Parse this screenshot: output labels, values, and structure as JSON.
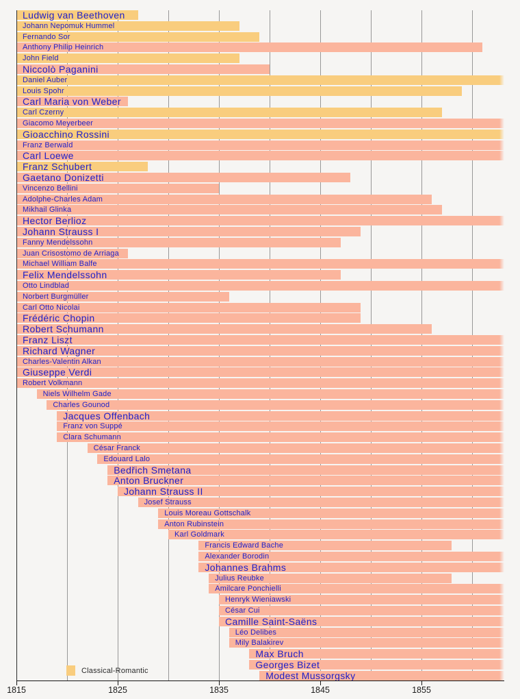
{
  "chart_data": {
    "type": "timeline",
    "title": "",
    "x_axis": {
      "min_year": 1815,
      "max_year": 1863,
      "tick_years": [
        1815,
        1825,
        1835,
        1845,
        1855
      ],
      "gridline_years": [
        1820,
        1825,
        1830,
        1835,
        1840,
        1845,
        1850,
        1855,
        1860
      ],
      "grid": "on"
    },
    "legend": [
      {
        "label": "Classical-Romantic",
        "group": "classical-romantic"
      }
    ],
    "group_colors": {
      "classical-romantic": "#f9cd7e",
      "romantic": "#fbb59d"
    },
    "composers": [
      {
        "name": "Ludwig van Beethoven",
        "size": "lg",
        "group": "classical-romantic",
        "start": 1815,
        "end": 1827,
        "clip_start": true,
        "clip_end": false
      },
      {
        "name": "Johann Nepomuk Hummel",
        "size": "sm",
        "group": "classical-romantic",
        "start": 1815,
        "end": 1837,
        "clip_start": true,
        "clip_end": false
      },
      {
        "name": "Fernando Sor",
        "size": "sm",
        "group": "classical-romantic",
        "start": 1815,
        "end": 1839,
        "clip_start": true,
        "clip_end": false
      },
      {
        "name": "Anthony Philip Heinrich",
        "size": "sm",
        "group": "romantic",
        "start": 1815,
        "end": 1861,
        "clip_start": true,
        "clip_end": false
      },
      {
        "name": "John Field",
        "size": "sm",
        "group": "classical-romantic",
        "start": 1815,
        "end": 1837,
        "clip_start": true,
        "clip_end": false
      },
      {
        "name": "Niccolò Paganini",
        "size": "lg",
        "group": "romantic",
        "start": 1815,
        "end": 1840,
        "clip_start": true,
        "clip_end": false
      },
      {
        "name": "Daniel Auber",
        "size": "sm",
        "group": "classical-romantic",
        "start": 1815,
        "end": 1863,
        "clip_start": true,
        "clip_end": true
      },
      {
        "name": "Louis Spohr",
        "size": "sm",
        "group": "classical-romantic",
        "start": 1815,
        "end": 1859,
        "clip_start": true,
        "clip_end": false
      },
      {
        "name": "Carl Maria von Weber",
        "size": "lg",
        "group": "romantic",
        "start": 1815,
        "end": 1826,
        "clip_start": true,
        "clip_end": false
      },
      {
        "name": "Carl Czerny",
        "size": "sm",
        "group": "classical-romantic",
        "start": 1815,
        "end": 1857,
        "clip_start": true,
        "clip_end": false
      },
      {
        "name": "Giacomo Meyerbeer",
        "size": "sm",
        "group": "romantic",
        "start": 1815,
        "end": 1863,
        "clip_start": true,
        "clip_end": true
      },
      {
        "name": "Gioacchino Rossini",
        "size": "lg",
        "group": "classical-romantic",
        "start": 1815,
        "end": 1863,
        "clip_start": true,
        "clip_end": true
      },
      {
        "name": "Franz Berwald",
        "size": "sm",
        "group": "romantic",
        "start": 1815,
        "end": 1863,
        "clip_start": true,
        "clip_end": true
      },
      {
        "name": "Carl Loewe",
        "size": "lg",
        "group": "romantic",
        "start": 1815,
        "end": 1863,
        "clip_start": true,
        "clip_end": true
      },
      {
        "name": "Franz Schubert",
        "size": "lg",
        "group": "classical-romantic",
        "start": 1815,
        "end": 1828,
        "clip_start": true,
        "clip_end": false
      },
      {
        "name": "Gaetano Donizetti",
        "size": "lg",
        "group": "romantic",
        "start": 1815,
        "end": 1848,
        "clip_start": true,
        "clip_end": false
      },
      {
        "name": "Vincenzo Bellini",
        "size": "sm",
        "group": "romantic",
        "start": 1815,
        "end": 1835,
        "clip_start": true,
        "clip_end": false
      },
      {
        "name": "Adolphe-Charles Adam",
        "size": "sm",
        "group": "romantic",
        "start": 1815,
        "end": 1856,
        "clip_start": true,
        "clip_end": false
      },
      {
        "name": "Mikhail Glinka",
        "size": "sm",
        "group": "romantic",
        "start": 1815,
        "end": 1857,
        "clip_start": true,
        "clip_end": false
      },
      {
        "name": "Hector Berlioz",
        "size": "lg",
        "group": "romantic",
        "start": 1815,
        "end": 1863,
        "clip_start": true,
        "clip_end": true
      },
      {
        "name": "Johann Strauss I",
        "size": "lg",
        "group": "romantic",
        "start": 1815,
        "end": 1849,
        "clip_start": true,
        "clip_end": false
      },
      {
        "name": "Fanny Mendelssohn",
        "size": "sm",
        "group": "romantic",
        "start": 1815,
        "end": 1847,
        "clip_start": true,
        "clip_end": false
      },
      {
        "name": "Juan Crisostomo de Arriaga",
        "size": "sm",
        "group": "romantic",
        "start": 1815,
        "end": 1826,
        "clip_start": true,
        "clip_end": false
      },
      {
        "name": "Michael William Balfe",
        "size": "sm",
        "group": "romantic",
        "start": 1815,
        "end": 1863,
        "clip_start": true,
        "clip_end": true
      },
      {
        "name": "Felix Mendelssohn",
        "size": "lg",
        "group": "romantic",
        "start": 1815,
        "end": 1847,
        "clip_start": true,
        "clip_end": false
      },
      {
        "name": "Otto Lindblad",
        "size": "sm",
        "group": "romantic",
        "start": 1815,
        "end": 1863,
        "clip_start": true,
        "clip_end": true
      },
      {
        "name": "Norbert Burgmüller",
        "size": "sm",
        "group": "romantic",
        "start": 1815,
        "end": 1836,
        "clip_start": true,
        "clip_end": false
      },
      {
        "name": "Carl Otto Nicolai",
        "size": "sm",
        "group": "romantic",
        "start": 1815,
        "end": 1849,
        "clip_start": true,
        "clip_end": false
      },
      {
        "name": "Frédéric Chopin",
        "size": "lg",
        "group": "romantic",
        "start": 1815,
        "end": 1849,
        "clip_start": true,
        "clip_end": false
      },
      {
        "name": "Robert Schumann",
        "size": "lg",
        "group": "romantic",
        "start": 1815,
        "end": 1856,
        "clip_start": true,
        "clip_end": false
      },
      {
        "name": "Franz Liszt",
        "size": "lg",
        "group": "romantic",
        "start": 1815,
        "end": 1863,
        "clip_start": true,
        "clip_end": true
      },
      {
        "name": "Richard Wagner",
        "size": "lg",
        "group": "romantic",
        "start": 1815,
        "end": 1863,
        "clip_start": true,
        "clip_end": true
      },
      {
        "name": "Charles-Valentin Alkan",
        "size": "sm",
        "group": "romantic",
        "start": 1815,
        "end": 1863,
        "clip_start": true,
        "clip_end": true
      },
      {
        "name": "Giuseppe Verdi",
        "size": "lg",
        "group": "romantic",
        "start": 1815,
        "end": 1863,
        "clip_start": true,
        "clip_end": true
      },
      {
        "name": "Robert Volkmann",
        "size": "sm",
        "group": "romantic",
        "start": 1815,
        "end": 1863,
        "clip_start": true,
        "clip_end": true
      },
      {
        "name": "Niels Wilhelm Gade",
        "size": "sm",
        "group": "romantic",
        "start": 1817,
        "end": 1863,
        "clip_start": false,
        "clip_end": true
      },
      {
        "name": "Charles Gounod",
        "size": "sm",
        "group": "romantic",
        "start": 1818,
        "end": 1863,
        "clip_start": false,
        "clip_end": true
      },
      {
        "name": "Jacques Offenbach",
        "size": "lg",
        "group": "romantic",
        "start": 1819,
        "end": 1863,
        "clip_start": false,
        "clip_end": true
      },
      {
        "name": "Franz von Suppé",
        "size": "sm",
        "group": "romantic",
        "start": 1819,
        "end": 1863,
        "clip_start": false,
        "clip_end": true
      },
      {
        "name": "Clara Schumann",
        "size": "sm",
        "group": "romantic",
        "start": 1819,
        "end": 1863,
        "clip_start": false,
        "clip_end": true
      },
      {
        "name": "César Franck",
        "size": "sm",
        "group": "romantic",
        "start": 1822,
        "end": 1863,
        "clip_start": false,
        "clip_end": true
      },
      {
        "name": "Edouard Lalo",
        "size": "sm",
        "group": "romantic",
        "start": 1823,
        "end": 1863,
        "clip_start": false,
        "clip_end": true
      },
      {
        "name": "Bedřich Smetana",
        "size": "lg",
        "group": "romantic",
        "start": 1824,
        "end": 1863,
        "clip_start": false,
        "clip_end": true
      },
      {
        "name": "Anton Bruckner",
        "size": "lg",
        "group": "romantic",
        "start": 1824,
        "end": 1863,
        "clip_start": false,
        "clip_end": true
      },
      {
        "name": "Johann Strauss II",
        "size": "lg",
        "group": "romantic",
        "start": 1825,
        "end": 1863,
        "clip_start": false,
        "clip_end": true
      },
      {
        "name": "Josef Strauss",
        "size": "sm",
        "group": "romantic",
        "start": 1827,
        "end": 1863,
        "clip_start": false,
        "clip_end": true
      },
      {
        "name": "Louis Moreau Gottschalk",
        "size": "sm",
        "group": "romantic",
        "start": 1829,
        "end": 1863,
        "clip_start": false,
        "clip_end": true
      },
      {
        "name": "Anton Rubinstein",
        "size": "sm",
        "group": "romantic",
        "start": 1829,
        "end": 1863,
        "clip_start": false,
        "clip_end": true
      },
      {
        "name": "Karl Goldmark",
        "size": "sm",
        "group": "romantic",
        "start": 1830,
        "end": 1863,
        "clip_start": false,
        "clip_end": true
      },
      {
        "name": "Francis Edward Bache",
        "size": "sm",
        "group": "romantic",
        "start": 1833,
        "end": 1858,
        "clip_start": false,
        "clip_end": false
      },
      {
        "name": "Alexander Borodin",
        "size": "sm",
        "group": "romantic",
        "start": 1833,
        "end": 1863,
        "clip_start": false,
        "clip_end": true
      },
      {
        "name": "Johannes Brahms",
        "size": "lg",
        "group": "romantic",
        "start": 1833,
        "end": 1863,
        "clip_start": false,
        "clip_end": true
      },
      {
        "name": "Julius Reubke",
        "size": "sm",
        "group": "romantic",
        "start": 1834,
        "end": 1858,
        "clip_start": false,
        "clip_end": false
      },
      {
        "name": "Amilcare Ponchielli",
        "size": "sm",
        "group": "romantic",
        "start": 1834,
        "end": 1863,
        "clip_start": false,
        "clip_end": true
      },
      {
        "name": "Henryk Wieniawski",
        "size": "sm",
        "group": "romantic",
        "start": 1835,
        "end": 1863,
        "clip_start": false,
        "clip_end": true
      },
      {
        "name": "César Cui",
        "size": "sm",
        "group": "romantic",
        "start": 1835,
        "end": 1863,
        "clip_start": false,
        "clip_end": true
      },
      {
        "name": "Camille Saint-Saëns",
        "size": "lg",
        "group": "romantic",
        "start": 1835,
        "end": 1863,
        "clip_start": false,
        "clip_end": true
      },
      {
        "name": "Léo Delibes",
        "size": "sm",
        "group": "romantic",
        "start": 1836,
        "end": 1863,
        "clip_start": false,
        "clip_end": true
      },
      {
        "name": "Mily Balakirev",
        "size": "sm",
        "group": "romantic",
        "start": 1836,
        "end": 1863,
        "clip_start": false,
        "clip_end": true
      },
      {
        "name": "Max Bruch",
        "size": "lg",
        "group": "romantic",
        "start": 1838,
        "end": 1863,
        "clip_start": false,
        "clip_end": true
      },
      {
        "name": "Georges Bizet",
        "size": "lg",
        "group": "romantic",
        "start": 1838,
        "end": 1863,
        "clip_start": false,
        "clip_end": true
      },
      {
        "name": "Modest Mussorgsky",
        "size": "lg",
        "group": "romantic",
        "start": 1839,
        "end": 1863,
        "clip_start": false,
        "clip_end": true
      }
    ]
  },
  "colors": {
    "background": "#f6f5f3",
    "bar_classical_romantic": "#f9cd7e",
    "bar_romantic": "#fbb59d",
    "name_text": "#2020c8",
    "gridline": "#979797",
    "axis": "#161616"
  },
  "legend": {
    "label": "Classical-Romantic"
  }
}
